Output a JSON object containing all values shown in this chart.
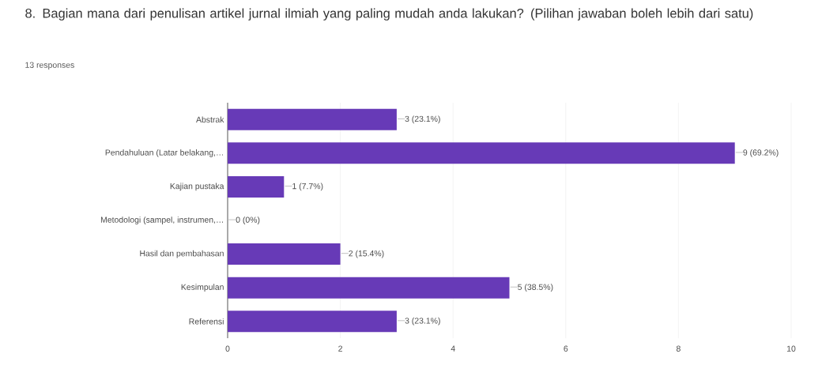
{
  "chart_data": {
    "type": "bar",
    "orientation": "horizontal",
    "title": "8. Bagian mana dari penulisan artikel jurnal ilmiah yang paling mudah anda lakukan? (Pilihan jawaban boleh lebih dari satu)",
    "subtitle": "13 responses",
    "categories": [
      "Abstrak",
      "Pendahuluan (Latar belakang,…",
      "Kajian pustaka",
      "Metodologi (sampel, instrumen,…",
      "Hasil dan pembahasan",
      "Kesimpulan",
      "Referensi"
    ],
    "values": [
      3,
      9,
      1,
      0,
      2,
      5,
      3
    ],
    "value_labels": [
      "3 (23.1%)",
      "9 (69.2%)",
      "1 (7.7%)",
      "0 (0%)",
      "2 (15.4%)",
      "5 (38.5%)",
      "3 (23.1%)"
    ],
    "color": "#673ab7",
    "xlim": [
      0,
      10
    ],
    "xticks": [
      0,
      2,
      4,
      6,
      8,
      10
    ],
    "grid": "x"
  }
}
